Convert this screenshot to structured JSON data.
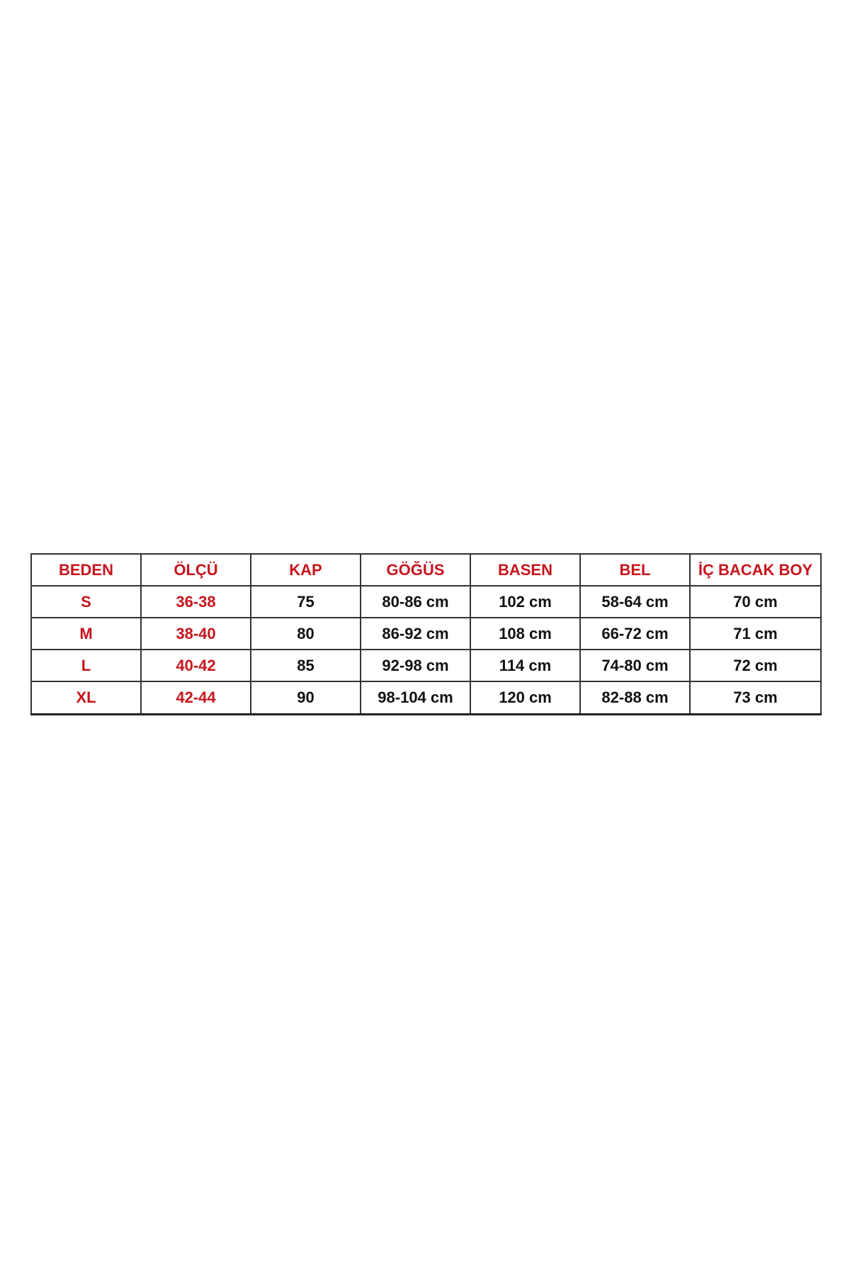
{
  "size_table": {
    "headers": [
      "BEDEN",
      "ÖLÇÜ",
      "KAP",
      "GÖĞÜS",
      "BASEN",
      "BEL",
      "İÇ BACAK BOY"
    ],
    "rows": [
      [
        "S",
        "36-38",
        "75",
        "80-86 cm",
        "102 cm",
        "58-64 cm",
        "70 cm"
      ],
      [
        "M",
        "38-40",
        "80",
        "86-92 cm",
        "108 cm",
        "66-72 cm",
        "71 cm"
      ],
      [
        "L",
        "40-42",
        "85",
        "92-98 cm",
        "114 cm",
        "74-80 cm",
        "72 cm"
      ],
      [
        "XL",
        "42-44",
        "90",
        "98-104 cm",
        "120 cm",
        "82-88 cm",
        "73 cm"
      ]
    ]
  },
  "colors": {
    "header_and_size_text": "#c8141c",
    "value_text": "#111111",
    "border": "#333333"
  }
}
